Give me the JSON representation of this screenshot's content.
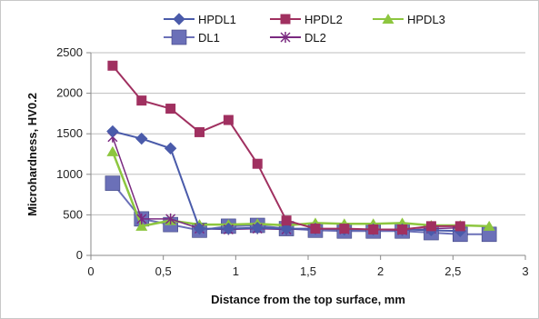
{
  "chart_data": {
    "type": "line",
    "title": "",
    "xlabel": "Distance from the top surface, mm",
    "ylabel": "Microhardness, HV0.2",
    "xlim": [
      0,
      3
    ],
    "ylim": [
      0,
      2500
    ],
    "x_ticks": [
      0,
      0.5,
      1,
      1.5,
      2,
      2.5,
      3
    ],
    "x_tick_labels": [
      "0",
      "0,5",
      "1",
      "1,5",
      "2",
      "2,5",
      "3"
    ],
    "y_ticks": [
      0,
      500,
      1000,
      1500,
      2000,
      2500
    ],
    "y_tick_labels": [
      "0",
      "500",
      "1000",
      "1500",
      "2000",
      "2500"
    ],
    "grid": "horizontal",
    "legend_position": "top",
    "series": [
      {
        "name": "HPDL1",
        "color": "#4A5BAA",
        "marker": "diamond",
        "x": [
          0.15,
          0.35,
          0.55,
          0.75,
          0.95,
          1.15,
          1.35,
          1.55,
          1.75,
          1.95,
          2.15,
          2.35,
          2.55
        ],
        "y": [
          1530,
          1440,
          1320,
          330,
          330,
          340,
          330,
          330,
          320,
          320,
          320,
          310,
          300
        ]
      },
      {
        "name": "HPDL2",
        "color": "#A03060",
        "marker": "square",
        "x": [
          0.15,
          0.35,
          0.55,
          0.75,
          0.95,
          1.15,
          1.35,
          1.55,
          1.75,
          1.95,
          2.15,
          2.35,
          2.55
        ],
        "y": [
          2340,
          1910,
          1810,
          1520,
          1670,
          1130,
          430,
          330,
          330,
          320,
          320,
          360,
          360
        ]
      },
      {
        "name": "HPDL3",
        "color": "#8DC63F",
        "marker": "triangle",
        "x": [
          0.15,
          0.35,
          0.55,
          0.75,
          0.95,
          1.15,
          1.35,
          1.55,
          1.75,
          1.95,
          2.15,
          2.35,
          2.55,
          2.75
        ],
        "y": [
          1280,
          360,
          430,
          380,
          380,
          390,
          370,
          400,
          390,
          390,
          400,
          370,
          370,
          360
        ]
      },
      {
        "name": "DL1",
        "color": "#6B70B8",
        "marker": "bigsquare",
        "x": [
          0.15,
          0.35,
          0.55,
          0.75,
          0.95,
          1.15,
          1.35,
          1.55,
          1.75,
          1.95,
          2.15,
          2.35,
          2.55,
          2.75
        ],
        "y": [
          890,
          450,
          380,
          310,
          360,
          370,
          330,
          310,
          300,
          300,
          300,
          280,
          260,
          260
        ]
      },
      {
        "name": "DL2",
        "color": "#7A2A80",
        "marker": "star",
        "x": [
          0.15,
          0.35,
          0.55,
          0.75,
          0.95,
          1.15,
          1.35,
          1.55,
          1.75,
          1.95,
          2.15,
          2.35,
          2.55
        ],
        "y": [
          1460,
          450,
          450,
          330,
          320,
          330,
          320,
          330,
          320,
          320,
          310,
          330,
          340
        ]
      }
    ]
  }
}
